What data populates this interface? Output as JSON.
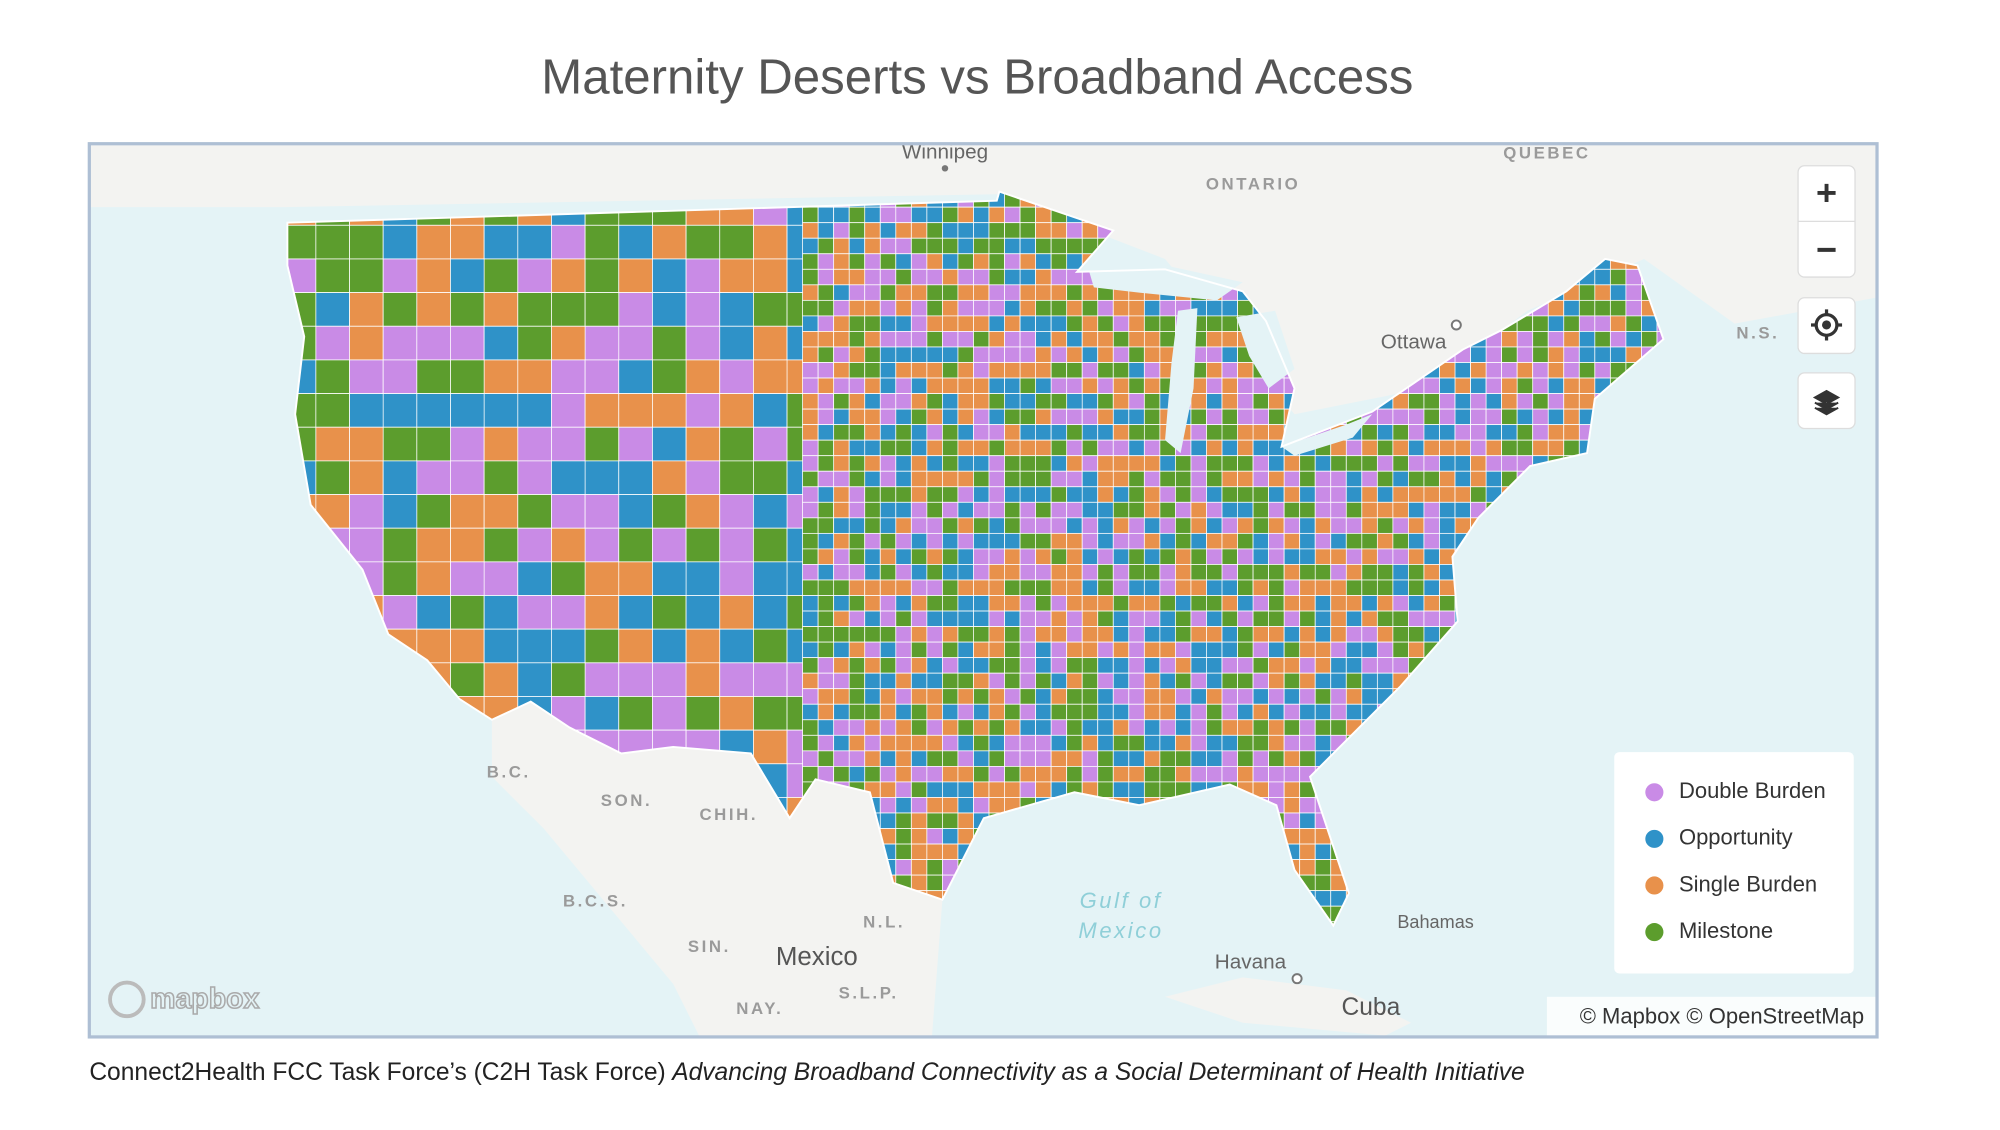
{
  "header": {
    "title": "Maternity Deserts vs Broadband Access"
  },
  "map": {
    "place_labels": [
      "Winnipeg",
      "ONTARIO",
      "QUEBEC",
      "Ottawa",
      "N.S.",
      "B.C.",
      "SON.",
      "CHIH.",
      "B.C.S.",
      "SIN.",
      "Mexico",
      "N.L.",
      "S.L.P.",
      "NAY.",
      "Gulf of",
      "Mexico",
      "Havana",
      "Bahamas",
      "Cuba"
    ],
    "legend": [
      {
        "label": "Double Burden",
        "color": "#c98be6"
      },
      {
        "label": "Opportunity",
        "color": "#2f92c8"
      },
      {
        "label": "Single Burden",
        "color": "#e8914b"
      },
      {
        "label": "Milestone",
        "color": "#5c9d2d"
      }
    ],
    "logo": "mapbox",
    "attribution": "© Mapbox © OpenStreetMap"
  },
  "caption": {
    "source": "Connect2Health FCC Task Force’s (C2H Task Force)",
    "title": "Advancing Broadband Connectivity as a Social Determinant of Health Initiative"
  }
}
